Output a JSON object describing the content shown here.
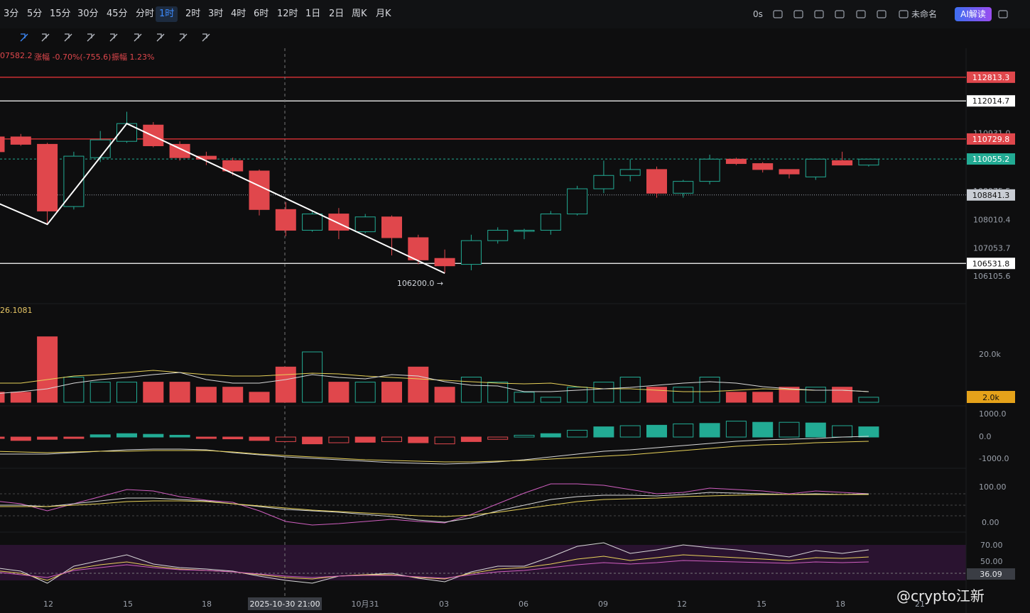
{
  "toolbar": {
    "timeframes": [
      "3分",
      "5分",
      "15分",
      "30分",
      "45分",
      "分时",
      "1时",
      "2时",
      "3时",
      "4时",
      "6时",
      "12时",
      "1日",
      "2日",
      "周K",
      "月K"
    ],
    "active": "1时",
    "right": {
      "seconds": "0s",
      "layout_name": "未命名",
      "ai_label": "AI解读"
    },
    "icons": [
      "camera-icon",
      "pen-icon",
      "crop-icon",
      "screenshot-icon",
      "settings-icon",
      "fullscreen-icon",
      "cloud-icon",
      "share-icon"
    ],
    "drawing_tools": [
      "copy-icon",
      "pencil-icon",
      "brush-icon",
      "candle-icon",
      "lock-icon",
      "ruler-icon",
      "magnet-icon",
      "filter-icon",
      "trash-icon"
    ]
  },
  "info_bar": {
    "price": "07582.2",
    "change": "涨幅 -0.70%(-755.6)",
    "amplitude": "振幅 1.23%"
  },
  "volume_label": "26.1081",
  "watermark": "@crypto江新",
  "chart_data": {
    "type": "candlestick",
    "x_labels": [
      "12",
      "15",
      "18",
      "10月31",
      "03",
      "06",
      "09",
      "12",
      "15",
      "18",
      "21"
    ],
    "crosshair_label": "2025-10-30 21:00",
    "price_axis_ticks": [
      "110931.0",
      "108975.5",
      "108010.4",
      "107053.7",
      "106105.6"
    ],
    "price_range": [
      105700,
      113600
    ],
    "colors": {
      "up": "#22ab94",
      "down": "#e0474c",
      "red_line": "#f0353a",
      "white_line": "#ffffff"
    },
    "horizontal_levels": [
      {
        "value": 112813.3,
        "label": "112813.3",
        "style": "red"
      },
      {
        "value": 112014.7,
        "label": "112014.7",
        "style": "white"
      },
      {
        "value": 110729.8,
        "label": "110729.8",
        "style": "red"
      },
      {
        "value": 110055.2,
        "label": "110055.2",
        "style": "green-dash"
      },
      {
        "value": 108841.3,
        "label": "108841.3",
        "style": "grey-dot"
      },
      {
        "value": 106531.8,
        "label": "106531.8",
        "style": "white"
      }
    ],
    "low_annotation": {
      "value": 106200.0,
      "label": "106200.0 →"
    },
    "candles": [
      {
        "o": 110800,
        "h": 111300,
        "l": 110300,
        "c": 110300
      },
      {
        "o": 110800,
        "h": 110900,
        "l": 110500,
        "c": 110550
      },
      {
        "o": 110550,
        "h": 110600,
        "l": 107850,
        "c": 108300
      },
      {
        "o": 108450,
        "h": 110300,
        "l": 108350,
        "c": 110150
      },
      {
        "o": 110100,
        "h": 111000,
        "l": 109950,
        "c": 110700
      },
      {
        "o": 110650,
        "h": 111650,
        "l": 110600,
        "c": 111250
      },
      {
        "o": 111200,
        "h": 111300,
        "l": 110450,
        "c": 110500
      },
      {
        "o": 110550,
        "h": 110650,
        "l": 110000,
        "c": 110100
      },
      {
        "o": 110150,
        "h": 110300,
        "l": 109850,
        "c": 110050
      },
      {
        "o": 110000,
        "h": 110100,
        "l": 109500,
        "c": 109650
      },
      {
        "o": 109650,
        "h": 109700,
        "l": 108150,
        "c": 108350
      },
      {
        "o": 108350,
        "h": 108600,
        "l": 107450,
        "c": 107650
      },
      {
        "o": 107650,
        "h": 108300,
        "l": 107600,
        "c": 108200
      },
      {
        "o": 108200,
        "h": 108400,
        "l": 107350,
        "c": 107650
      },
      {
        "o": 107600,
        "h": 108200,
        "l": 107550,
        "c": 108100
      },
      {
        "o": 108100,
        "h": 108150,
        "l": 106800,
        "c": 107400
      },
      {
        "o": 107400,
        "h": 107500,
        "l": 106500,
        "c": 106650
      },
      {
        "o": 106700,
        "h": 107000,
        "l": 106200,
        "c": 106450
      },
      {
        "o": 106500,
        "h": 107500,
        "l": 106300,
        "c": 107300
      },
      {
        "o": 107300,
        "h": 107750,
        "l": 107200,
        "c": 107650
      },
      {
        "o": 107650,
        "h": 107700,
        "l": 107350,
        "c": 107650
      },
      {
        "o": 107650,
        "h": 108300,
        "l": 107500,
        "c": 108200
      },
      {
        "o": 108200,
        "h": 109150,
        "l": 108150,
        "c": 109050
      },
      {
        "o": 109050,
        "h": 110000,
        "l": 108900,
        "c": 109500
      },
      {
        "o": 109500,
        "h": 110050,
        "l": 109300,
        "c": 109700
      },
      {
        "o": 109700,
        "h": 109800,
        "l": 108750,
        "c": 108900
      },
      {
        "o": 108900,
        "h": 109350,
        "l": 108750,
        "c": 109300
      },
      {
        "o": 109300,
        "h": 110200,
        "l": 109200,
        "c": 110050
      },
      {
        "o": 110050,
        "h": 110100,
        "l": 109850,
        "c": 109900
      },
      {
        "o": 109900,
        "h": 109950,
        "l": 109600,
        "c": 109700
      },
      {
        "o": 109700,
        "h": 109650,
        "l": 109400,
        "c": 109550
      },
      {
        "o": 109450,
        "h": 110050,
        "l": 109350,
        "c": 110050
      },
      {
        "o": 110000,
        "h": 110300,
        "l": 109850,
        "c": 109850
      },
      {
        "o": 109850,
        "h": 110050,
        "l": 109800,
        "c": 110050
      }
    ],
    "zigzag_values": [
      109000,
      107850,
      111250,
      106200
    ],
    "volume": {
      "axis_ticks": [
        "20.0k"
      ],
      "current_label": "2.0k",
      "values": [
        2,
        2,
        13,
        5,
        4,
        4,
        4,
        4,
        3,
        3,
        2,
        7,
        10,
        4,
        4,
        4,
        7,
        3,
        5,
        4,
        2,
        1,
        3,
        4,
        5,
        3,
        3,
        5,
        2,
        2,
        3,
        3,
        3,
        1
      ]
    },
    "macd": {
      "axis_ticks": [
        "1000.0",
        "0.0",
        "-1000.0"
      ],
      "hist": [
        -50,
        -150,
        -100,
        -50,
        100,
        150,
        120,
        80,
        -30,
        -80,
        -150,
        -200,
        -300,
        -250,
        -230,
        -200,
        -250,
        -300,
        -200,
        -100,
        80,
        150,
        300,
        450,
        500,
        520,
        580,
        600,
        700,
        650,
        650,
        620,
        500,
        450
      ]
    },
    "rsi": {
      "axis_ticks": [
        "100.00",
        "0.00"
      ]
    },
    "kdj": {
      "axis_ticks": [
        "70.00",
        "50.00",
        "36.09"
      ]
    }
  }
}
